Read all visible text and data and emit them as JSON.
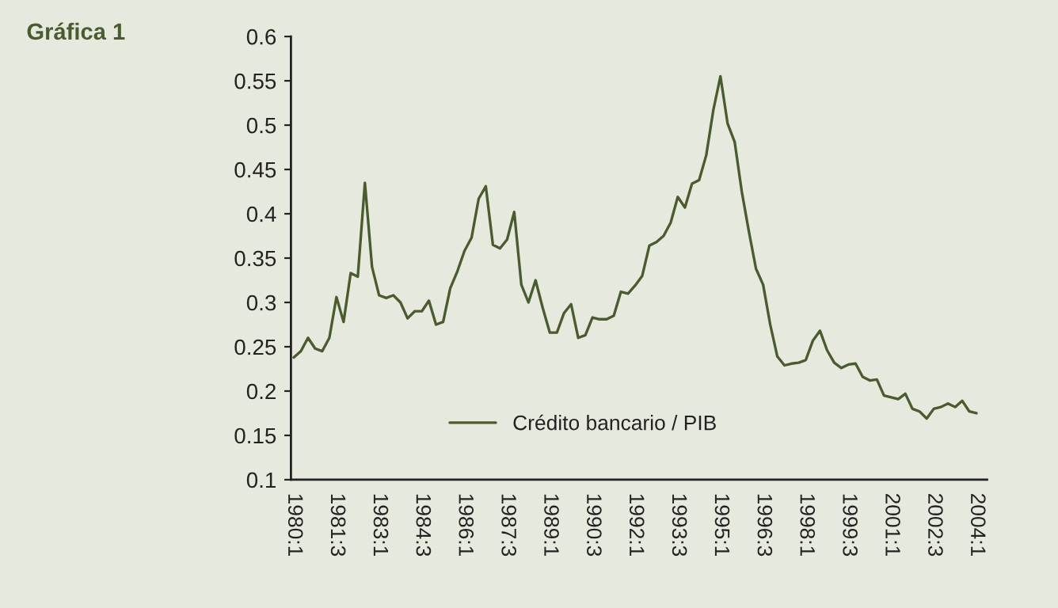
{
  "chart_data": {
    "type": "line",
    "title": "Gráfica 1",
    "categories": [
      "1980:1",
      null,
      null,
      null,
      null,
      null,
      "1981:3",
      null,
      null,
      null,
      null,
      null,
      "1983:1",
      null,
      null,
      null,
      null,
      null,
      "1984:3",
      null,
      null,
      null,
      null,
      null,
      "1986:1",
      null,
      null,
      null,
      null,
      null,
      "1987:3",
      null,
      null,
      null,
      null,
      null,
      "1989:1",
      null,
      null,
      null,
      null,
      null,
      "1990:3",
      null,
      null,
      null,
      null,
      null,
      "1992:1",
      null,
      null,
      null,
      null,
      null,
      "1993:3",
      null,
      null,
      null,
      null,
      null,
      "1995:1",
      null,
      null,
      null,
      null,
      null,
      "1996:3",
      null,
      null,
      null,
      null,
      null,
      "1998:1",
      null,
      null,
      null,
      null,
      null,
      "1999:3",
      null,
      null,
      null,
      null,
      null,
      "2001:1",
      null,
      null,
      null,
      null,
      null,
      "2002:3",
      null,
      null,
      null,
      null,
      null,
      "2004:1"
    ],
    "series": [
      {
        "name": "Crédito bancario / PIB",
        "color": "#4b5b30",
        "values": [
          0.238,
          0.245,
          0.26,
          0.248,
          0.245,
          0.26,
          0.306,
          0.278,
          0.333,
          0.329,
          0.435,
          0.34,
          0.308,
          0.305,
          0.308,
          0.3,
          0.282,
          0.29,
          0.29,
          0.302,
          0.275,
          0.278,
          0.316,
          0.335,
          0.358,
          0.373,
          0.417,
          0.431,
          0.365,
          0.361,
          0.371,
          0.402,
          0.32,
          0.3,
          0.325,
          0.294,
          0.266,
          0.266,
          0.288,
          0.298,
          0.26,
          0.263,
          0.283,
          0.281,
          0.281,
          0.285,
          0.312,
          0.31,
          0.319,
          0.33,
          0.364,
          0.368,
          0.375,
          0.39,
          0.419,
          0.407,
          0.434,
          0.438,
          0.466,
          0.517,
          0.555,
          0.502,
          0.481,
          0.425,
          0.38,
          0.338,
          0.32,
          0.275,
          0.239,
          0.229,
          0.231,
          0.232,
          0.235,
          0.257,
          0.268,
          0.246,
          0.232,
          0.226,
          0.23,
          0.231,
          0.216,
          0.212,
          0.213,
          0.195,
          0.193,
          0.191,
          0.197,
          0.18,
          0.177,
          0.169,
          0.18,
          0.182,
          0.186,
          0.182,
          0.189,
          0.177,
          0.175
        ]
      }
    ],
    "ylim": [
      0.1,
      0.6
    ],
    "yticks": [
      0.1,
      0.15,
      0.2,
      0.25,
      0.3,
      0.35,
      0.4,
      0.45,
      0.5,
      0.55,
      0.6
    ],
    "grid": false,
    "legend": "bottom",
    "marker": "none",
    "line_style": "solid"
  }
}
